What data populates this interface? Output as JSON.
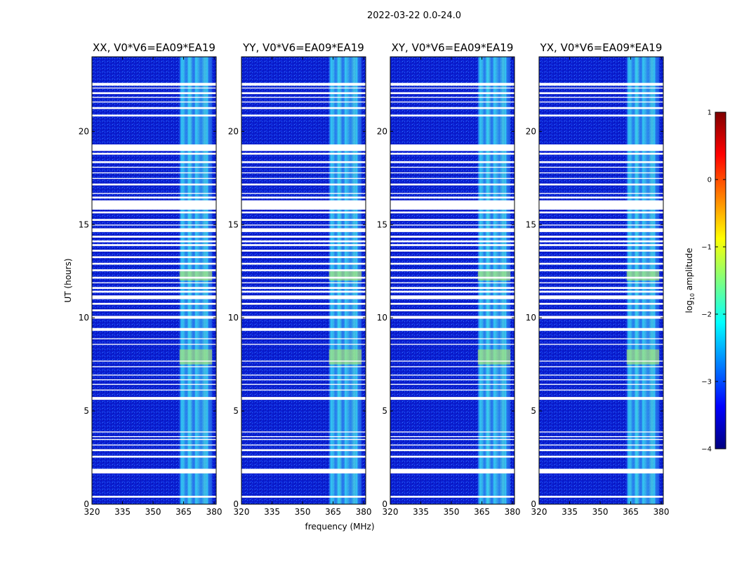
{
  "figure": {
    "suptitle": "2022-03-22 0.0-24.0",
    "xlabel": "frequency (MHz)",
    "ylabel": "UT (hours)"
  },
  "colors": {
    "background_low": "#0a1fd2",
    "band_base": "#2b8cf0",
    "band_high": "#35e0f5",
    "band_bright": "#c8f55a",
    "flag_white": "#ffffff",
    "frame": "#000000"
  },
  "chart_data": [
    {
      "type": "heatmap",
      "title": "XX, V0*V6=EA09*EA19",
      "xlim": [
        320,
        381
      ],
      "ylim": [
        0,
        24
      ],
      "xticks": [
        320,
        335,
        350,
        365,
        380
      ],
      "yticks": [
        0,
        5,
        10,
        15,
        20
      ]
    },
    {
      "type": "heatmap",
      "title": "YY, V0*V6=EA09*EA19",
      "xlim": [
        320,
        381
      ],
      "ylim": [
        0,
        24
      ],
      "xticks": [
        320,
        335,
        350,
        365,
        380
      ],
      "yticks": [
        0,
        5,
        10,
        15,
        20
      ]
    },
    {
      "type": "heatmap",
      "title": "XY, V0*V6=EA09*EA19",
      "xlim": [
        320,
        381
      ],
      "ylim": [
        0,
        24
      ],
      "xticks": [
        320,
        335,
        350,
        365,
        380
      ],
      "yticks": [
        0,
        5,
        10,
        15,
        20
      ]
    },
    {
      "type": "heatmap",
      "title": "YX, V0*V6=EA09*EA19",
      "xlim": [
        320,
        381
      ],
      "ylim": [
        0,
        24
      ],
      "xticks": [
        320,
        335,
        350,
        365,
        380
      ],
      "yticks": [
        0,
        5,
        10,
        15,
        20
      ]
    }
  ],
  "rfi_band": {
    "start_mhz": 363,
    "end_mhz": 379,
    "strong_channels_mhz": [
      364,
      367.5,
      371,
      376.5
    ],
    "bright_periods_ut": [
      [
        7.5,
        8.3
      ],
      [
        12.0,
        12.5
      ]
    ]
  },
  "flagged_ut": [
    [
      0.35,
      0.45
    ],
    [
      1.65,
      1.9
    ],
    [
      2.5,
      2.6
    ],
    [
      2.85,
      2.95
    ],
    [
      3.15,
      3.2
    ],
    [
      3.45,
      3.5
    ],
    [
      3.6,
      3.65
    ],
    [
      3.85,
      3.9
    ],
    [
      5.6,
      5.75
    ],
    [
      6.1,
      6.15
    ],
    [
      6.4,
      6.45
    ],
    [
      6.65,
      6.7
    ],
    [
      6.9,
      6.95
    ],
    [
      7.35,
      7.4
    ],
    [
      7.65,
      7.7
    ],
    [
      8.55,
      8.6
    ],
    [
      8.85,
      8.9
    ],
    [
      9.3,
      9.45
    ],
    [
      9.95,
      10.1
    ],
    [
      10.35,
      10.45
    ],
    [
      10.7,
      10.8
    ],
    [
      11.0,
      11.2
    ],
    [
      11.35,
      11.45
    ],
    [
      11.55,
      11.65
    ],
    [
      11.85,
      11.9
    ],
    [
      12.1,
      12.2
    ],
    [
      12.5,
      12.6
    ],
    [
      12.85,
      12.95
    ],
    [
      13.2,
      13.3
    ],
    [
      13.55,
      13.65
    ],
    [
      13.85,
      13.95
    ],
    [
      14.05,
      14.15
    ],
    [
      14.3,
      14.4
    ],
    [
      14.6,
      14.8
    ],
    [
      14.95,
      15.0
    ],
    [
      15.2,
      15.3
    ],
    [
      15.6,
      15.7
    ],
    [
      15.8,
      16.3
    ],
    [
      16.4,
      16.5
    ],
    [
      16.65,
      16.7
    ],
    [
      17.1,
      17.2
    ],
    [
      17.45,
      17.5
    ],
    [
      17.75,
      17.8
    ],
    [
      18.05,
      18.1
    ],
    [
      18.3,
      18.4
    ],
    [
      18.75,
      18.85
    ],
    [
      18.95,
      19.3
    ],
    [
      20.8,
      20.9
    ],
    [
      21.2,
      21.3
    ],
    [
      21.55,
      21.6
    ],
    [
      21.8,
      21.85
    ],
    [
      22.0,
      22.1
    ],
    [
      22.3,
      22.35
    ],
    [
      22.45,
      22.6
    ]
  ],
  "colorbar": {
    "label": "log10 amplitude",
    "label_main": "log",
    "label_sub": "10",
    "label_tail": " amplitude",
    "range": [
      -4,
      1
    ],
    "ticks": [
      1,
      0,
      -1,
      -2,
      -3,
      -4
    ],
    "tick_labels": [
      "1",
      "0",
      "−1",
      "−2",
      "−3",
      "−4"
    ],
    "colormap": "jet",
    "stops": [
      "#00007f",
      "#0000ff",
      "#007fff",
      "#00ffff",
      "#7fff7f",
      "#ffff00",
      "#ff7f00",
      "#ff0000",
      "#7f0000"
    ]
  }
}
